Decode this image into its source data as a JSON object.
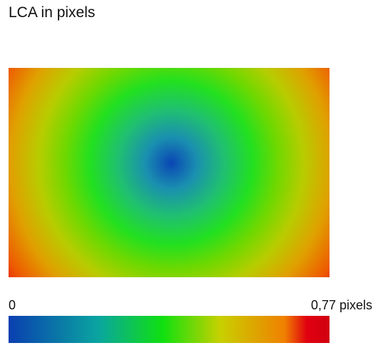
{
  "chart_data": {
    "type": "heatmap",
    "title": "LCA in pixels",
    "colorbar": {
      "min_label": "0",
      "max_label": "0,77 pixels",
      "min": 0,
      "max": 0.77,
      "colors": [
        "#0a3fb0",
        "#0aa5a0",
        "#10e010",
        "#c8d000",
        "#f08000",
        "#e00010"
      ]
    },
    "field": {
      "description_min_location": "center-left",
      "min_value": 0,
      "max_value": 0.77,
      "levels": [
        {
          "value": 0.0,
          "color": "#0a46b4"
        },
        {
          "value": 0.1,
          "color": "#1a8fb0"
        },
        {
          "value": 0.2,
          "color": "#20c070"
        },
        {
          "value": 0.3,
          "color": "#22e020"
        },
        {
          "value": 0.4,
          "color": "#70d800"
        },
        {
          "value": 0.5,
          "color": "#b8cc00"
        },
        {
          "value": 0.6,
          "color": "#e0a000"
        },
        {
          "value": 0.7,
          "color": "#ee5a00"
        },
        {
          "value": 0.77,
          "color": "#e0000c"
        }
      ]
    }
  }
}
